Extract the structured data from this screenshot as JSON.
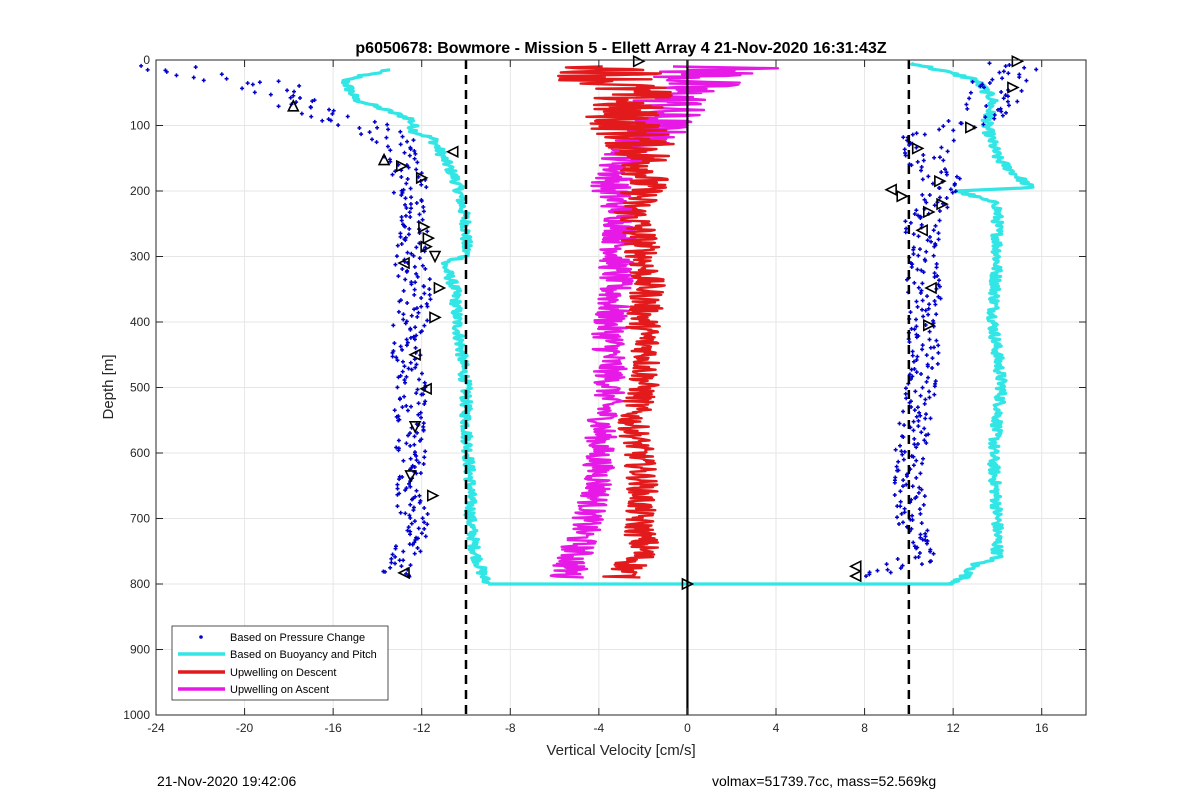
{
  "chart_data": {
    "type": "scatter",
    "title": "p6050678: Bowmore - Mission 5 - Ellett Array 4 21-Nov-2020 16:31:43Z",
    "xlabel": "Vertical Velocity [cm/s]",
    "ylabel": "Depth [m]",
    "xlim": [
      -24,
      18
    ],
    "ylim": [
      0,
      1000
    ],
    "y_reversed": true,
    "grid": true,
    "xticks": [
      -24,
      -20,
      -16,
      -12,
      -8,
      -4,
      0,
      4,
      8,
      12,
      16
    ],
    "yticks": [
      0,
      100,
      200,
      300,
      400,
      500,
      600,
      700,
      800,
      900,
      1000
    ],
    "legend_placement": "bottom-left",
    "reference_lines": [
      {
        "x": -10,
        "style": "dashed",
        "color": "#000000"
      },
      {
        "x": 0,
        "style": "solid",
        "color": "#000000"
      },
      {
        "x": 10,
        "style": "dashed",
        "color": "#000000"
      }
    ],
    "series": [
      {
        "name": "Based on Pressure Change",
        "kind": "points",
        "color": "#0000cc",
        "segments": [
          {
            "depth": [
              10,
              25,
              40,
              60,
              75,
              90,
              110,
              130,
              150,
              170,
              190,
              220,
              260,
              300,
              350,
              400,
              450,
              500,
              550,
              600,
              650,
              700,
              750,
              790
            ],
            "x": [
              -23.5,
              -21,
              -19,
              -18,
              -17,
              -15.5,
              -14,
              -13,
              -13.3,
              -12.8,
              -12.5,
              -12.5,
              -12.2,
              -12.6,
              -12.3,
              -12.5,
              -12.7,
              -12.4,
              -12.6,
              -12.5,
              -12.4,
              -12.4,
              -12.6,
              -13.2
            ],
            "spread": [
              1.5,
              2.0,
              1.5,
              1.2,
              1.2,
              1.2,
              1.2,
              1.0,
              1.0,
              0.8,
              0.8,
              0.7,
              0.8,
              0.8,
              0.8,
              0.8,
              0.7,
              0.7,
              0.7,
              0.7,
              0.7,
              0.7,
              0.7,
              0.7
            ]
          },
          {
            "depth": [
              5,
              30,
              60,
              90,
              120,
              150,
              180,
              210,
              250,
              300,
              350,
              400,
              450,
              500,
              550,
              600,
              650,
              700,
              740,
              770,
              790
            ],
            "x": [
              14.8,
              14.2,
              13.8,
              13.0,
              10.8,
              10.5,
              11.5,
              11.2,
              10.6,
              10.6,
              10.7,
              10.6,
              10.7,
              10.5,
              10.3,
              10.0,
              10.0,
              10.1,
              10.6,
              9.8,
              7.7
            ],
            "spread": [
              1.2,
              1.3,
              1.4,
              1.3,
              1.3,
              1.1,
              0.9,
              0.9,
              0.8,
              0.8,
              0.8,
              0.7,
              0.7,
              0.7,
              0.7,
              0.7,
              0.7,
              0.7,
              0.7,
              1.2,
              0.8
            ]
          }
        ]
      },
      {
        "name": "Based on Buoyancy and Pitch",
        "kind": "line",
        "color": "#33e6e6",
        "segments": [
          {
            "depth": [
              15,
              30,
              60,
              90,
              110,
              120,
              150,
              180,
              200,
              250,
              300,
              310,
              350,
              400,
              450,
              500,
              550,
              600,
              650,
              700,
              750,
              790,
              800
            ],
            "x": [
              -13.5,
              -15.5,
              -15.0,
              -12.5,
              -12.3,
              -11.5,
              -11.0,
              -10.5,
              -10.3,
              -10.0,
              -10.0,
              -11.0,
              -10.5,
              -10.4,
              -10.2,
              -10.0,
              -10.0,
              -9.9,
              -9.8,
              -9.8,
              -9.6,
              -9.2,
              -9.0
            ]
          },
          {
            "depth": [
              800,
              800
            ],
            "x": [
              -9.0,
              12.0
            ]
          },
          {
            "depth": [
              5,
              30,
              60,
              100,
              150,
              195,
              200,
              220,
              250,
              300,
              400,
              500,
              600,
              700,
              760,
              770,
              790,
              800
            ],
            "x": [
              10.2,
              13.0,
              13.8,
              13.5,
              14.0,
              15.5,
              12.2,
              14.0,
              14.0,
              14.0,
              13.8,
              14.2,
              13.8,
              14.0,
              14.0,
              13.0,
              12.5,
              12.0
            ]
          }
        ]
      },
      {
        "name": "Upwelling on Descent",
        "kind": "line",
        "color": "#e31a1c",
        "segments": [
          {
            "depth": [
              10,
              30,
              50,
              80,
              110,
              140,
              170,
              200,
              230,
              260,
              300,
              350,
              400,
              450,
              500,
              550,
              600,
              650,
              700,
              750,
              790
            ],
            "x": [
              -3.0,
              -3.5,
              -2.5,
              -3.0,
              -2.5,
              -2.0,
              -1.8,
              -2.0,
              -2.5,
              -2.2,
              -2.0,
              -1.8,
              -2.0,
              -1.8,
              -2.0,
              -2.5,
              -2.2,
              -2.0,
              -2.2,
              -2.0,
              -3.0
            ],
            "spread": [
              2.5,
              2.5,
              2.0,
              1.8,
              1.8,
              1.5,
              1.2,
              1.0,
              0.9,
              0.9,
              0.8,
              0.8,
              0.8,
              0.7,
              0.7,
              0.7,
              0.7,
              0.7,
              0.7,
              0.8,
              0.9
            ]
          }
        ]
      },
      {
        "name": "Upwelling on Ascent",
        "kind": "line",
        "color": "#e619e6",
        "segments": [
          {
            "depth": [
              10,
              30,
              50,
              80,
              110,
              140,
              170,
              200,
              230,
              260,
              300,
              350,
              400,
              450,
              500,
              550,
              600,
              650,
              700,
              750,
              790
            ],
            "x": [
              1.5,
              0.5,
              -0.5,
              -1.0,
              -1.5,
              -2.5,
              -3.2,
              -3.5,
              -3.0,
              -3.0,
              -3.2,
              -3.3,
              -3.5,
              -3.5,
              -3.5,
              -3.8,
              -4.0,
              -4.0,
              -4.5,
              -5.0,
              -5.5
            ],
            "spread": [
              3.0,
              2.5,
              2.0,
              1.8,
              1.5,
              1.2,
              1.0,
              0.9,
              0.8,
              0.8,
              0.8,
              0.8,
              0.8,
              0.8,
              0.7,
              0.7,
              0.7,
              0.7,
              0.7,
              0.8,
              0.9
            ]
          }
        ]
      }
    ],
    "markers": [
      {
        "shape": "triangle-right",
        "x": -2.2,
        "depth": 2
      },
      {
        "shape": "triangle-right",
        "x": 14.9,
        "depth": 2
      },
      {
        "shape": "triangle-right",
        "x": 14.7,
        "depth": 42
      },
      {
        "shape": "triangle-up",
        "x": -17.8,
        "depth": 70
      },
      {
        "shape": "triangle-right",
        "x": 12.8,
        "depth": 103
      },
      {
        "shape": "triangle-right",
        "x": 10.4,
        "depth": 135
      },
      {
        "shape": "triangle-left",
        "x": -10.6,
        "depth": 140
      },
      {
        "shape": "triangle-up",
        "x": -13.7,
        "depth": 152
      },
      {
        "shape": "triangle-right",
        "x": -12.9,
        "depth": 162
      },
      {
        "shape": "triangle-right",
        "x": -12.0,
        "depth": 180
      },
      {
        "shape": "triangle-right",
        "x": 11.4,
        "depth": 185
      },
      {
        "shape": "triangle-left",
        "x": 9.2,
        "depth": 198
      },
      {
        "shape": "triangle-right",
        "x": 9.7,
        "depth": 208
      },
      {
        "shape": "triangle-right",
        "x": 11.5,
        "depth": 220
      },
      {
        "shape": "triangle-right",
        "x": 10.9,
        "depth": 232
      },
      {
        "shape": "triangle-right",
        "x": -11.9,
        "depth": 255
      },
      {
        "shape": "triangle-left",
        "x": 10.6,
        "depth": 260
      },
      {
        "shape": "triangle-right",
        "x": -11.7,
        "depth": 272
      },
      {
        "shape": "triangle-right",
        "x": -11.8,
        "depth": 285
      },
      {
        "shape": "triangle-down",
        "x": -11.4,
        "depth": 300
      },
      {
        "shape": "triangle-left",
        "x": -12.8,
        "depth": 310
      },
      {
        "shape": "triangle-left",
        "x": 11.0,
        "depth": 348
      },
      {
        "shape": "triangle-right",
        "x": -11.2,
        "depth": 348
      },
      {
        "shape": "triangle-right",
        "x": -11.4,
        "depth": 393
      },
      {
        "shape": "triangle-right",
        "x": 10.9,
        "depth": 405
      },
      {
        "shape": "triangle-left",
        "x": -12.3,
        "depth": 450
      },
      {
        "shape": "triangle-left",
        "x": -11.8,
        "depth": 502
      },
      {
        "shape": "triangle-down",
        "x": -12.3,
        "depth": 560
      },
      {
        "shape": "triangle-down",
        "x": -12.5,
        "depth": 635
      },
      {
        "shape": "triangle-right",
        "x": -11.5,
        "depth": 665
      },
      {
        "shape": "triangle-left",
        "x": 7.6,
        "depth": 773
      },
      {
        "shape": "triangle-left",
        "x": 7.6,
        "depth": 788
      },
      {
        "shape": "triangle-left",
        "x": -12.8,
        "depth": 783
      },
      {
        "shape": "triangle-right",
        "x": 0.0,
        "depth": 800
      }
    ]
  },
  "footer": {
    "timestamp": "21-Nov-2020 19:42:06",
    "summary": "volmax=51739.7cc, mass=52.569kg"
  }
}
